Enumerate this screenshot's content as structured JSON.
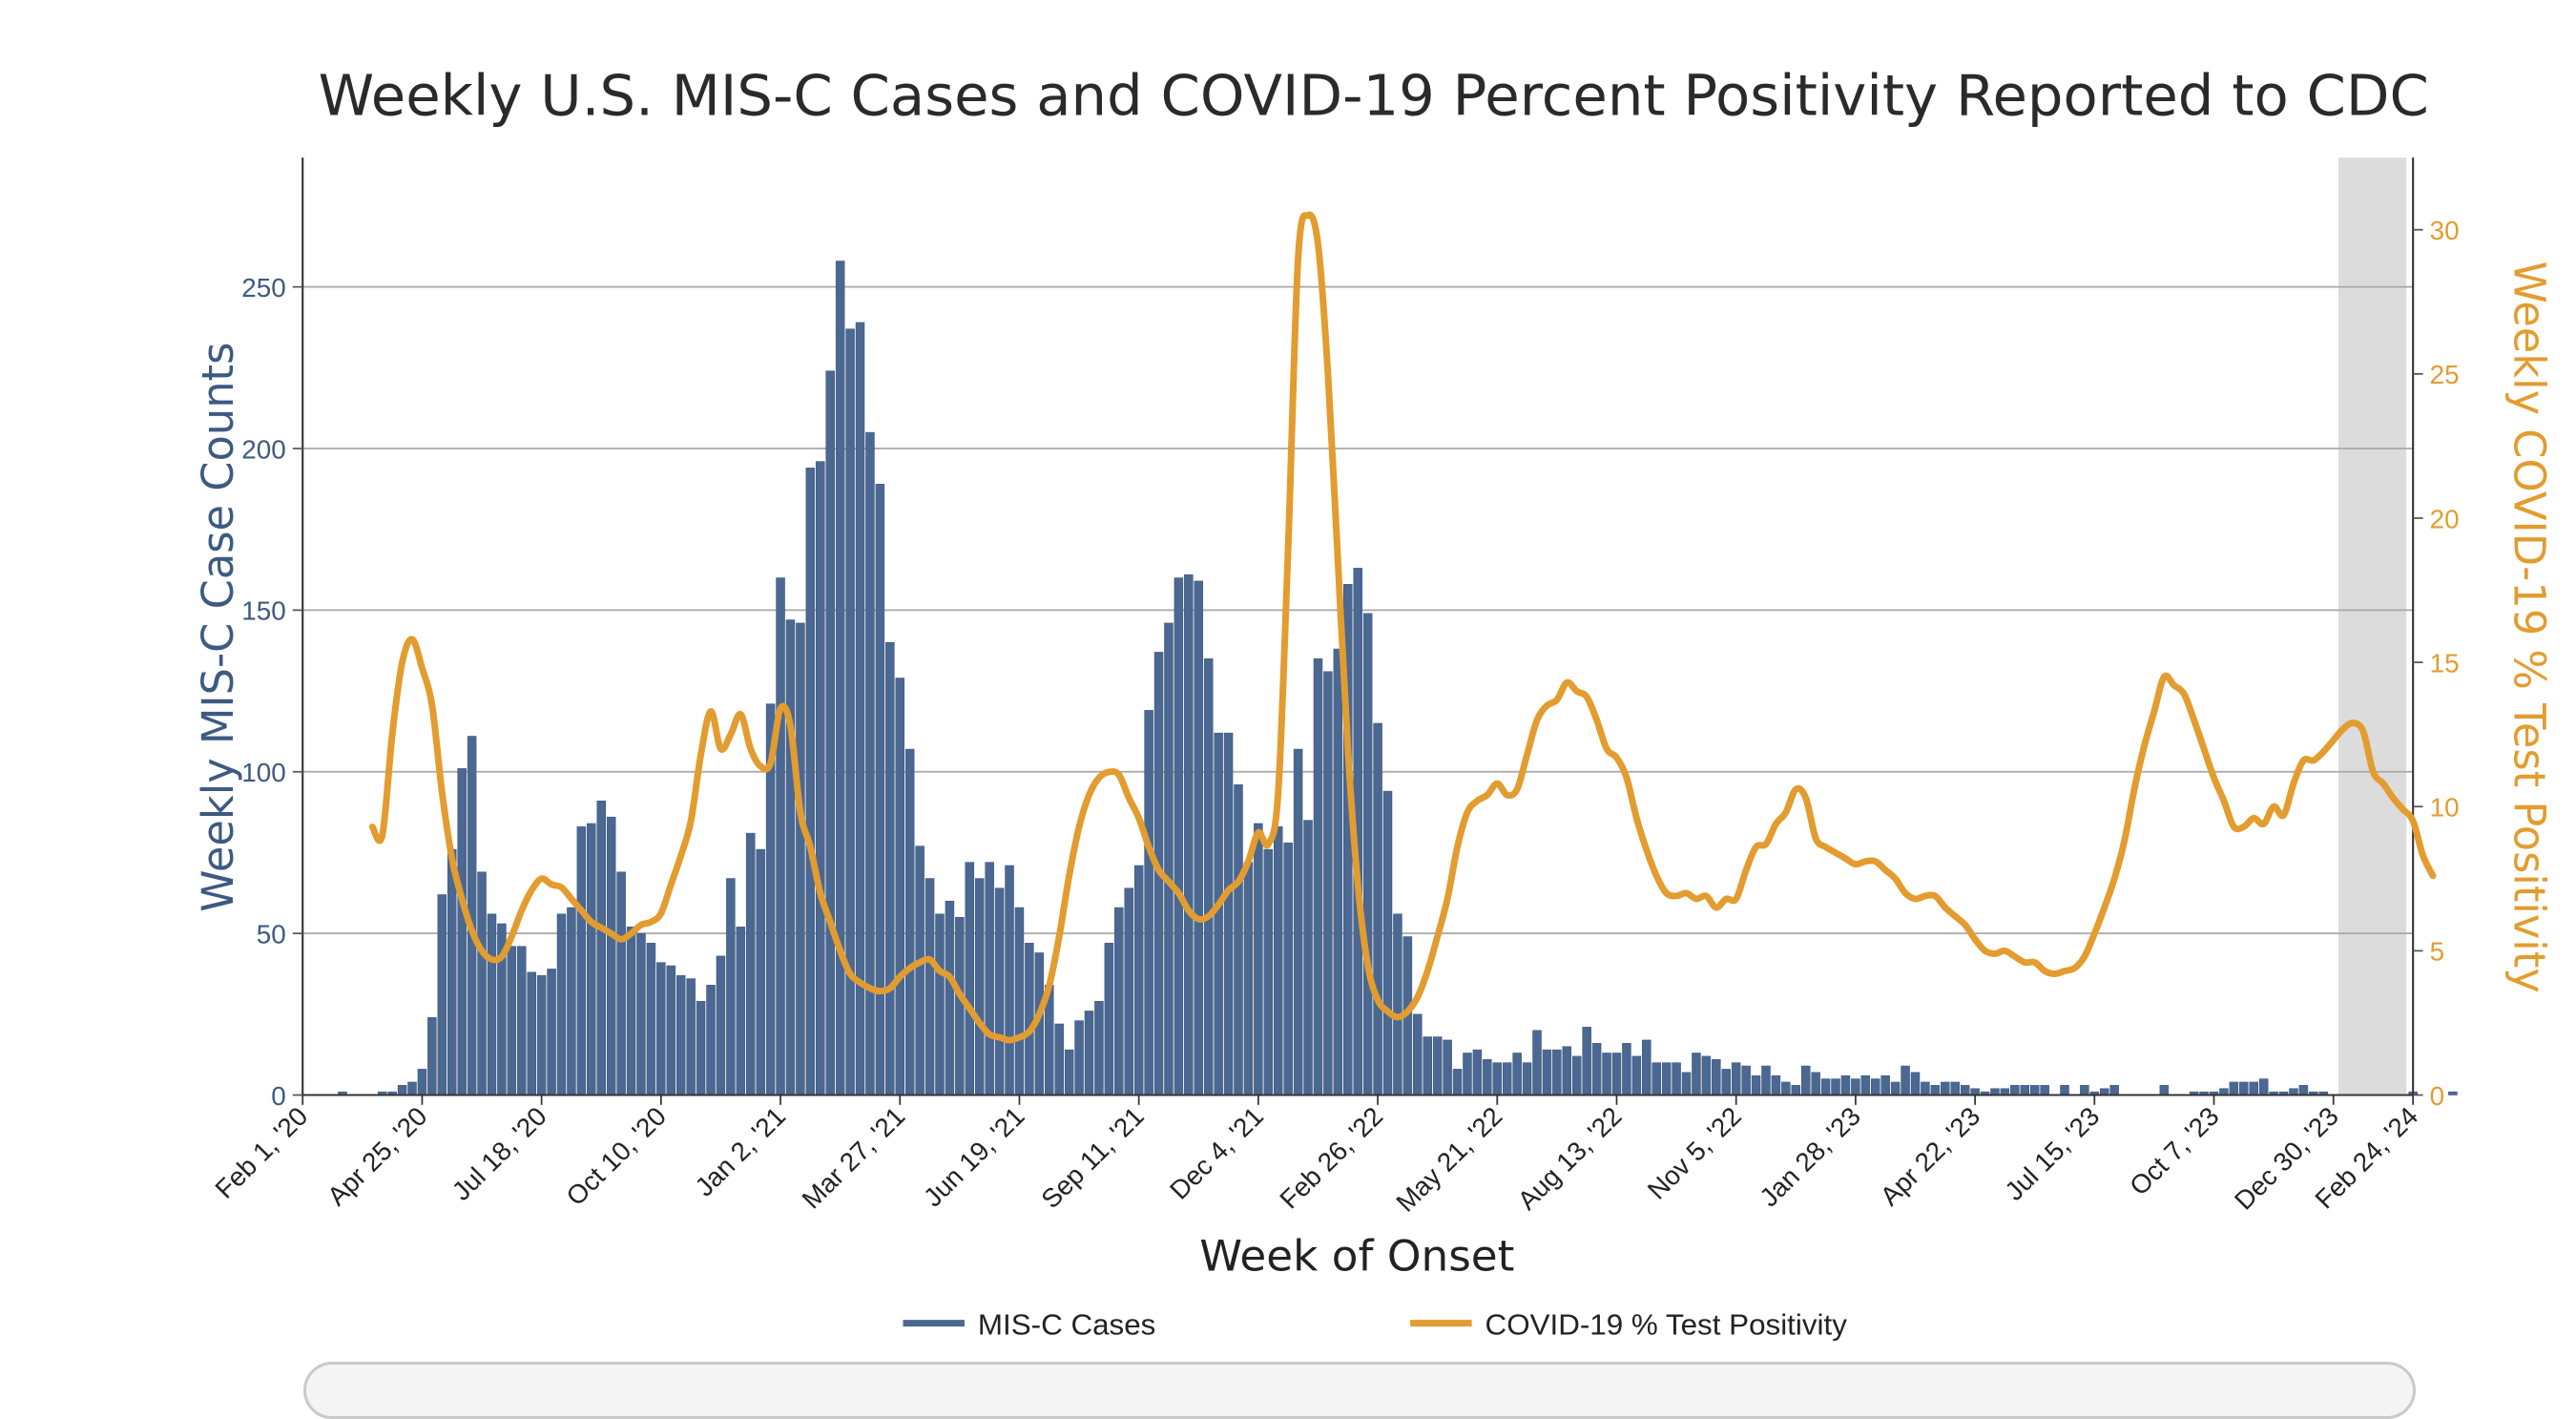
{
  "chart_data": {
    "type": "bar+line",
    "title": "Weekly U.S. MIS-C Cases and COVID-19 Percent Positivity Reported to CDC",
    "xlabel": "Week of Onset",
    "ylabel": "Weekly MIS-C Case Counts",
    "y2label": "Weekly COVID-19 % Test Positivity",
    "x_start": "2020-02-01",
    "x_end": "2024-02-24",
    "ylim": [
      0,
      290
    ],
    "y2lim": [
      0,
      32.5
    ],
    "yticks": [
      0,
      50,
      100,
      150,
      200,
      250
    ],
    "y2ticks": [
      0,
      5,
      10,
      15,
      20,
      25,
      30
    ],
    "xticks": [
      {
        "date": "2020-02-01",
        "label": "Feb 1, '20"
      },
      {
        "date": "2020-04-25",
        "label": "Apr 25, '20"
      },
      {
        "date": "2020-07-18",
        "label": "Jul 18, '20"
      },
      {
        "date": "2020-10-10",
        "label": "Oct 10, '20"
      },
      {
        "date": "2021-01-02",
        "label": "Jan 2, '21"
      },
      {
        "date": "2021-03-27",
        "label": "Mar 27, '21"
      },
      {
        "date": "2021-06-19",
        "label": "Jun 19, '21"
      },
      {
        "date": "2021-09-11",
        "label": "Sep 11, '21"
      },
      {
        "date": "2021-12-04",
        "label": "Dec 4, '21"
      },
      {
        "date": "2022-02-26",
        "label": "Feb 26, '22"
      },
      {
        "date": "2022-05-21",
        "label": "May 21, '22"
      },
      {
        "date": "2022-08-13",
        "label": "Aug 13, '22"
      },
      {
        "date": "2022-11-05",
        "label": "Nov 5, '22"
      },
      {
        "date": "2023-01-28",
        "label": "Jan 28, '23"
      },
      {
        "date": "2023-04-22",
        "label": "Apr 22, '23"
      },
      {
        "date": "2023-07-15",
        "label": "Jul 15, '23"
      },
      {
        "date": "2023-10-07",
        "label": "Oct 7, '23"
      },
      {
        "date": "2023-12-30",
        "label": "Dec 30, '23"
      },
      {
        "date": "2024-02-24",
        "label": "Feb 24, '24"
      }
    ],
    "shaded_region": {
      "start": "2023-12-30",
      "end": "2024-02-24"
    },
    "grid": true,
    "legend_position": "bottom-center",
    "series": [
      {
        "name": "MIS-C Cases",
        "type": "bar",
        "axis": "left",
        "color": "#4a6891",
        "start_date": "2020-02-08",
        "values": [
          0,
          0,
          0,
          1,
          0,
          0,
          0,
          1,
          1,
          3,
          4,
          8,
          24,
          62,
          76,
          101,
          111,
          69,
          56,
          53,
          46,
          46,
          38,
          37,
          39,
          56,
          58,
          83,
          84,
          91,
          86,
          69,
          52,
          50,
          47,
          41,
          40,
          37,
          36,
          29,
          34,
          43,
          67,
          52,
          81,
          76,
          121,
          160,
          147,
          146,
          194,
          196,
          224,
          258,
          237,
          239,
          205,
          189,
          140,
          129,
          107,
          77,
          67,
          56,
          60,
          55,
          72,
          67,
          72,
          64,
          71,
          58,
          47,
          44,
          34,
          22,
          14,
          23,
          26,
          29,
          47,
          58,
          64,
          71,
          119,
          137,
          146,
          160,
          161,
          159,
          135,
          112,
          112,
          96,
          72,
          84,
          76,
          83,
          78,
          107,
          85,
          135,
          131,
          138,
          158,
          163,
          149,
          115,
          94,
          56,
          49,
          25,
          18,
          18,
          17,
          8,
          13,
          14,
          11,
          10,
          10,
          13,
          10,
          20,
          14,
          14,
          15,
          12,
          21,
          16,
          13,
          13,
          16,
          12,
          17,
          10,
          10,
          10,
          7,
          13,
          12,
          11,
          8,
          10,
          9,
          6,
          9,
          6,
          4,
          3,
          9,
          7,
          5,
          5,
          6,
          5,
          6,
          5,
          6,
          4,
          9,
          7,
          4,
          3,
          4,
          4,
          3,
          2,
          1,
          2,
          2,
          3,
          3,
          3,
          3,
          0,
          3,
          0,
          3,
          1,
          2,
          3,
          0,
          0,
          0,
          0,
          3,
          0,
          0,
          1,
          1,
          1,
          2,
          4,
          4,
          4,
          5,
          1,
          1,
          2,
          3,
          1,
          1,
          0,
          0,
          0,
          0,
          0,
          0,
          0,
          0,
          1,
          0,
          0,
          0,
          1,
          0,
          0,
          0
        ]
      },
      {
        "name": "COVID-19 % Test Positivity",
        "type": "line",
        "axis": "right",
        "color": "#e39c2f",
        "points": [
          [
            "2020-03-21",
            9.3
          ],
          [
            "2020-03-28",
            9.0
          ],
          [
            "2020-04-04",
            12.5
          ],
          [
            "2020-04-11",
            15.0
          ],
          [
            "2020-04-18",
            15.8
          ],
          [
            "2020-04-25",
            14.8
          ],
          [
            "2020-05-02",
            13.5
          ],
          [
            "2020-05-09",
            10.5
          ],
          [
            "2020-05-16",
            8.2
          ],
          [
            "2020-05-23",
            6.8
          ],
          [
            "2020-05-30",
            5.7
          ],
          [
            "2020-06-06",
            5.0
          ],
          [
            "2020-06-13",
            4.7
          ],
          [
            "2020-06-20",
            4.8
          ],
          [
            "2020-06-27",
            5.5
          ],
          [
            "2020-07-04",
            6.4
          ],
          [
            "2020-07-11",
            7.1
          ],
          [
            "2020-07-18",
            7.5
          ],
          [
            "2020-07-25",
            7.3
          ],
          [
            "2020-08-01",
            7.2
          ],
          [
            "2020-08-08",
            6.8
          ],
          [
            "2020-08-15",
            6.4
          ],
          [
            "2020-08-22",
            6.0
          ],
          [
            "2020-08-29",
            5.8
          ],
          [
            "2020-09-05",
            5.6
          ],
          [
            "2020-09-12",
            5.4
          ],
          [
            "2020-09-19",
            5.6
          ],
          [
            "2020-09-26",
            5.9
          ],
          [
            "2020-10-03",
            6.0
          ],
          [
            "2020-10-10",
            6.3
          ],
          [
            "2020-10-17",
            7.3
          ],
          [
            "2020-10-24",
            8.3
          ],
          [
            "2020-10-31",
            9.5
          ],
          [
            "2020-11-07",
            11.8
          ],
          [
            "2020-11-14",
            13.3
          ],
          [
            "2020-11-21",
            12.0
          ],
          [
            "2020-11-28",
            12.5
          ],
          [
            "2020-12-05",
            13.2
          ],
          [
            "2020-12-12",
            12.0
          ],
          [
            "2020-12-19",
            11.4
          ],
          [
            "2020-12-26",
            11.5
          ],
          [
            "2021-01-02",
            13.4
          ],
          [
            "2021-01-09",
            12.8
          ],
          [
            "2021-01-16",
            9.8
          ],
          [
            "2021-01-23",
            8.6
          ],
          [
            "2021-01-30",
            7.0
          ],
          [
            "2021-02-06",
            6.0
          ],
          [
            "2021-02-13",
            5.0
          ],
          [
            "2021-02-20",
            4.2
          ],
          [
            "2021-02-27",
            3.9
          ],
          [
            "2021-03-06",
            3.7
          ],
          [
            "2021-03-13",
            3.6
          ],
          [
            "2021-03-20",
            3.7
          ],
          [
            "2021-03-27",
            4.1
          ],
          [
            "2021-04-03",
            4.4
          ],
          [
            "2021-04-10",
            4.6
          ],
          [
            "2021-04-17",
            4.7
          ],
          [
            "2021-04-24",
            4.3
          ],
          [
            "2021-05-01",
            4.1
          ],
          [
            "2021-05-08",
            3.5
          ],
          [
            "2021-05-15",
            3.0
          ],
          [
            "2021-05-22",
            2.5
          ],
          [
            "2021-05-29",
            2.1
          ],
          [
            "2021-06-05",
            2.0
          ],
          [
            "2021-06-12",
            1.9
          ],
          [
            "2021-06-19",
            2.0
          ],
          [
            "2021-06-26",
            2.2
          ],
          [
            "2021-07-03",
            2.8
          ],
          [
            "2021-07-10",
            3.8
          ],
          [
            "2021-07-17",
            5.5
          ],
          [
            "2021-07-24",
            7.6
          ],
          [
            "2021-07-31",
            9.3
          ],
          [
            "2021-08-07",
            10.4
          ],
          [
            "2021-08-14",
            11.0
          ],
          [
            "2021-08-21",
            11.2
          ],
          [
            "2021-08-28",
            11.1
          ],
          [
            "2021-09-04",
            10.3
          ],
          [
            "2021-09-11",
            9.6
          ],
          [
            "2021-09-18",
            8.6
          ],
          [
            "2021-09-25",
            7.8
          ],
          [
            "2021-10-02",
            7.4
          ],
          [
            "2021-10-09",
            7.0
          ],
          [
            "2021-10-16",
            6.4
          ],
          [
            "2021-10-23",
            6.1
          ],
          [
            "2021-10-30",
            6.2
          ],
          [
            "2021-11-06",
            6.6
          ],
          [
            "2021-11-13",
            7.1
          ],
          [
            "2021-11-20",
            7.4
          ],
          [
            "2021-11-27",
            8.1
          ],
          [
            "2021-12-04",
            9.1
          ],
          [
            "2021-12-11",
            8.7
          ],
          [
            "2021-12-18",
            10.5
          ],
          [
            "2021-12-25",
            19.0
          ],
          [
            "2022-01-01",
            29.0
          ],
          [
            "2022-01-08",
            30.5
          ],
          [
            "2022-01-15",
            29.5
          ],
          [
            "2022-01-22",
            25.0
          ],
          [
            "2022-01-29",
            18.5
          ],
          [
            "2022-02-05",
            12.0
          ],
          [
            "2022-02-12",
            7.3
          ],
          [
            "2022-02-19",
            4.5
          ],
          [
            "2022-02-26",
            3.3
          ],
          [
            "2022-03-05",
            2.9
          ],
          [
            "2022-03-12",
            2.7
          ],
          [
            "2022-03-19",
            2.9
          ],
          [
            "2022-03-26",
            3.4
          ],
          [
            "2022-04-02",
            4.3
          ],
          [
            "2022-04-09",
            5.5
          ],
          [
            "2022-04-16",
            6.8
          ],
          [
            "2022-04-23",
            8.6
          ],
          [
            "2022-04-30",
            9.8
          ],
          [
            "2022-05-07",
            10.2
          ],
          [
            "2022-05-14",
            10.4
          ],
          [
            "2022-05-21",
            10.8
          ],
          [
            "2022-05-28",
            10.4
          ],
          [
            "2022-06-04",
            10.6
          ],
          [
            "2022-06-11",
            11.8
          ],
          [
            "2022-06-18",
            13.0
          ],
          [
            "2022-06-25",
            13.5
          ],
          [
            "2022-07-02",
            13.7
          ],
          [
            "2022-07-09",
            14.3
          ],
          [
            "2022-07-16",
            14.0
          ],
          [
            "2022-07-23",
            13.8
          ],
          [
            "2022-07-30",
            13.0
          ],
          [
            "2022-08-06",
            12.0
          ],
          [
            "2022-08-13",
            11.7
          ],
          [
            "2022-08-20",
            11.0
          ],
          [
            "2022-08-27",
            9.6
          ],
          [
            "2022-09-03",
            8.5
          ],
          [
            "2022-09-10",
            7.6
          ],
          [
            "2022-09-17",
            7.0
          ],
          [
            "2022-09-24",
            6.9
          ],
          [
            "2022-10-01",
            7.0
          ],
          [
            "2022-10-08",
            6.8
          ],
          [
            "2022-10-15",
            6.9
          ],
          [
            "2022-10-22",
            6.5
          ],
          [
            "2022-10-29",
            6.8
          ],
          [
            "2022-11-05",
            6.8
          ],
          [
            "2022-11-12",
            7.8
          ],
          [
            "2022-11-19",
            8.6
          ],
          [
            "2022-11-26",
            8.7
          ],
          [
            "2022-12-03",
            9.4
          ],
          [
            "2022-12-10",
            9.8
          ],
          [
            "2022-12-17",
            10.6
          ],
          [
            "2022-12-24",
            10.3
          ],
          [
            "2022-12-31",
            8.9
          ],
          [
            "2023-01-07",
            8.6
          ],
          [
            "2023-01-14",
            8.4
          ],
          [
            "2023-01-21",
            8.2
          ],
          [
            "2023-01-28",
            8.0
          ],
          [
            "2023-02-04",
            8.1
          ],
          [
            "2023-02-11",
            8.1
          ],
          [
            "2023-02-18",
            7.8
          ],
          [
            "2023-02-25",
            7.5
          ],
          [
            "2023-03-04",
            7.0
          ],
          [
            "2023-03-11",
            6.8
          ],
          [
            "2023-03-18",
            6.9
          ],
          [
            "2023-03-25",
            6.9
          ],
          [
            "2023-04-01",
            6.5
          ],
          [
            "2023-04-08",
            6.2
          ],
          [
            "2023-04-15",
            5.9
          ],
          [
            "2023-04-22",
            5.4
          ],
          [
            "2023-04-29",
            5.0
          ],
          [
            "2023-05-06",
            4.9
          ],
          [
            "2023-05-13",
            5.0
          ],
          [
            "2023-05-20",
            4.8
          ],
          [
            "2023-05-27",
            4.6
          ],
          [
            "2023-06-03",
            4.6
          ],
          [
            "2023-06-10",
            4.3
          ],
          [
            "2023-06-17",
            4.2
          ],
          [
            "2023-06-24",
            4.3
          ],
          [
            "2023-07-01",
            4.4
          ],
          [
            "2023-07-08",
            4.8
          ],
          [
            "2023-07-15",
            5.6
          ],
          [
            "2023-07-22",
            6.5
          ],
          [
            "2023-07-29",
            7.5
          ],
          [
            "2023-08-05",
            8.8
          ],
          [
            "2023-08-12",
            10.6
          ],
          [
            "2023-08-19",
            12.1
          ],
          [
            "2023-08-26",
            13.3
          ],
          [
            "2023-09-02",
            14.5
          ],
          [
            "2023-09-09",
            14.2
          ],
          [
            "2023-09-16",
            13.9
          ],
          [
            "2023-09-23",
            13.0
          ],
          [
            "2023-09-30",
            12.0
          ],
          [
            "2023-10-07",
            11.0
          ],
          [
            "2023-10-14",
            10.2
          ],
          [
            "2023-10-21",
            9.3
          ],
          [
            "2023-10-28",
            9.3
          ],
          [
            "2023-11-04",
            9.6
          ],
          [
            "2023-11-11",
            9.4
          ],
          [
            "2023-11-18",
            10.0
          ],
          [
            "2023-11-25",
            9.7
          ],
          [
            "2023-12-02",
            10.8
          ],
          [
            "2023-12-09",
            11.6
          ],
          [
            "2023-12-16",
            11.6
          ],
          [
            "2023-12-23",
            11.9
          ],
          [
            "2023-12-30",
            12.3
          ],
          [
            "2024-01-06",
            12.7
          ],
          [
            "2024-01-13",
            12.9
          ],
          [
            "2024-01-20",
            12.6
          ],
          [
            "2024-01-27",
            11.2
          ],
          [
            "2024-02-03",
            10.8
          ],
          [
            "2024-02-10",
            10.3
          ],
          [
            "2024-02-17",
            9.9
          ],
          [
            "2024-02-24",
            9.5
          ],
          [
            "2024-03-02",
            8.3
          ],
          [
            "2024-03-09",
            7.6
          ]
        ]
      }
    ]
  }
}
